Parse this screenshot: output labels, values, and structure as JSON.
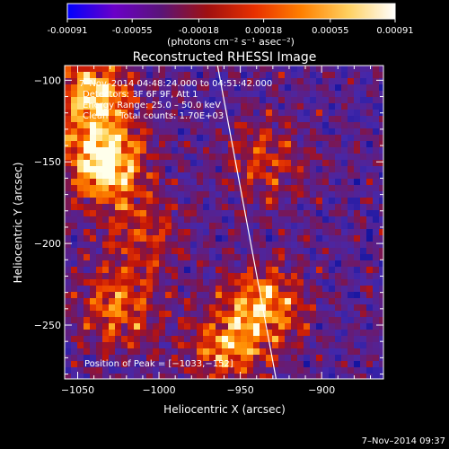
{
  "colorbar": {
    "tick_labels": [
      "-0.00091",
      "-0.00055",
      "-0.00018",
      "0.00018",
      "0.00055",
      "0.00091"
    ],
    "tick_values": [
      -0.00091,
      -0.00055,
      -0.00018,
      0.00018,
      0.00055,
      0.00091
    ],
    "range": [
      -0.00091,
      0.00091
    ],
    "unit_label": "(photons cm⁻² s⁻¹ asec⁻²)",
    "colors": [
      "#0000ff",
      "#6a00c8",
      "#5a1478",
      "#a01010",
      "#e83000",
      "#ff8000",
      "#ffd060",
      "#ffffff"
    ]
  },
  "chart_data": {
    "type": "heatmap",
    "title": "Reconstructed RHESSI Image",
    "xlabel": "Heliocentric X (arcsec)",
    "ylabel": "Heliocentric Y (arcsec)",
    "xlim": [
      -1058,
      -862
    ],
    "ylim": [
      -283,
      -91
    ],
    "xticks": [
      -1050,
      -1000,
      -950,
      -900
    ],
    "xtick_labels": [
      "−1050",
      "−1000",
      "−950",
      "−900"
    ],
    "yticks": [
      -100,
      -150,
      -200,
      -250
    ],
    "ytick_labels": [
      "−100",
      "−150",
      "−200",
      "−250"
    ],
    "annotations": {
      "time_range": "7–Nov–2014 04:48:24.000 to 04:51:42.000",
      "detectors": "Detectors: 3F 6F 9F, Att 1",
      "energy": "Energy Range: 25.0 – 50.0 keV",
      "clean": "Clean    Total counts: 1.70E+03",
      "peak": "Position of Peak = [−1033,−152]"
    },
    "peak": {
      "x": -1033,
      "y": -152
    },
    "limb_line": [
      {
        "x": -964,
        "y": -91
      },
      {
        "x": -928,
        "y": -283
      }
    ],
    "bright_sources": [
      {
        "x": -1033,
        "y": -152,
        "intensity": 1.0
      },
      {
        "x": -1040,
        "y": -110,
        "intensity": 0.85
      },
      {
        "x": -935,
        "y": -238,
        "intensity": 0.75
      },
      {
        "x": -1025,
        "y": -240,
        "intensity": 0.6
      },
      {
        "x": -960,
        "y": -265,
        "intensity": 0.6
      },
      {
        "x": -935,
        "y": -150,
        "intensity": 0.45
      },
      {
        "x": -1010,
        "y": -195,
        "intensity": 0.4
      }
    ]
  },
  "footer": {
    "timestamp": "7–Nov–2014 09:37"
  }
}
